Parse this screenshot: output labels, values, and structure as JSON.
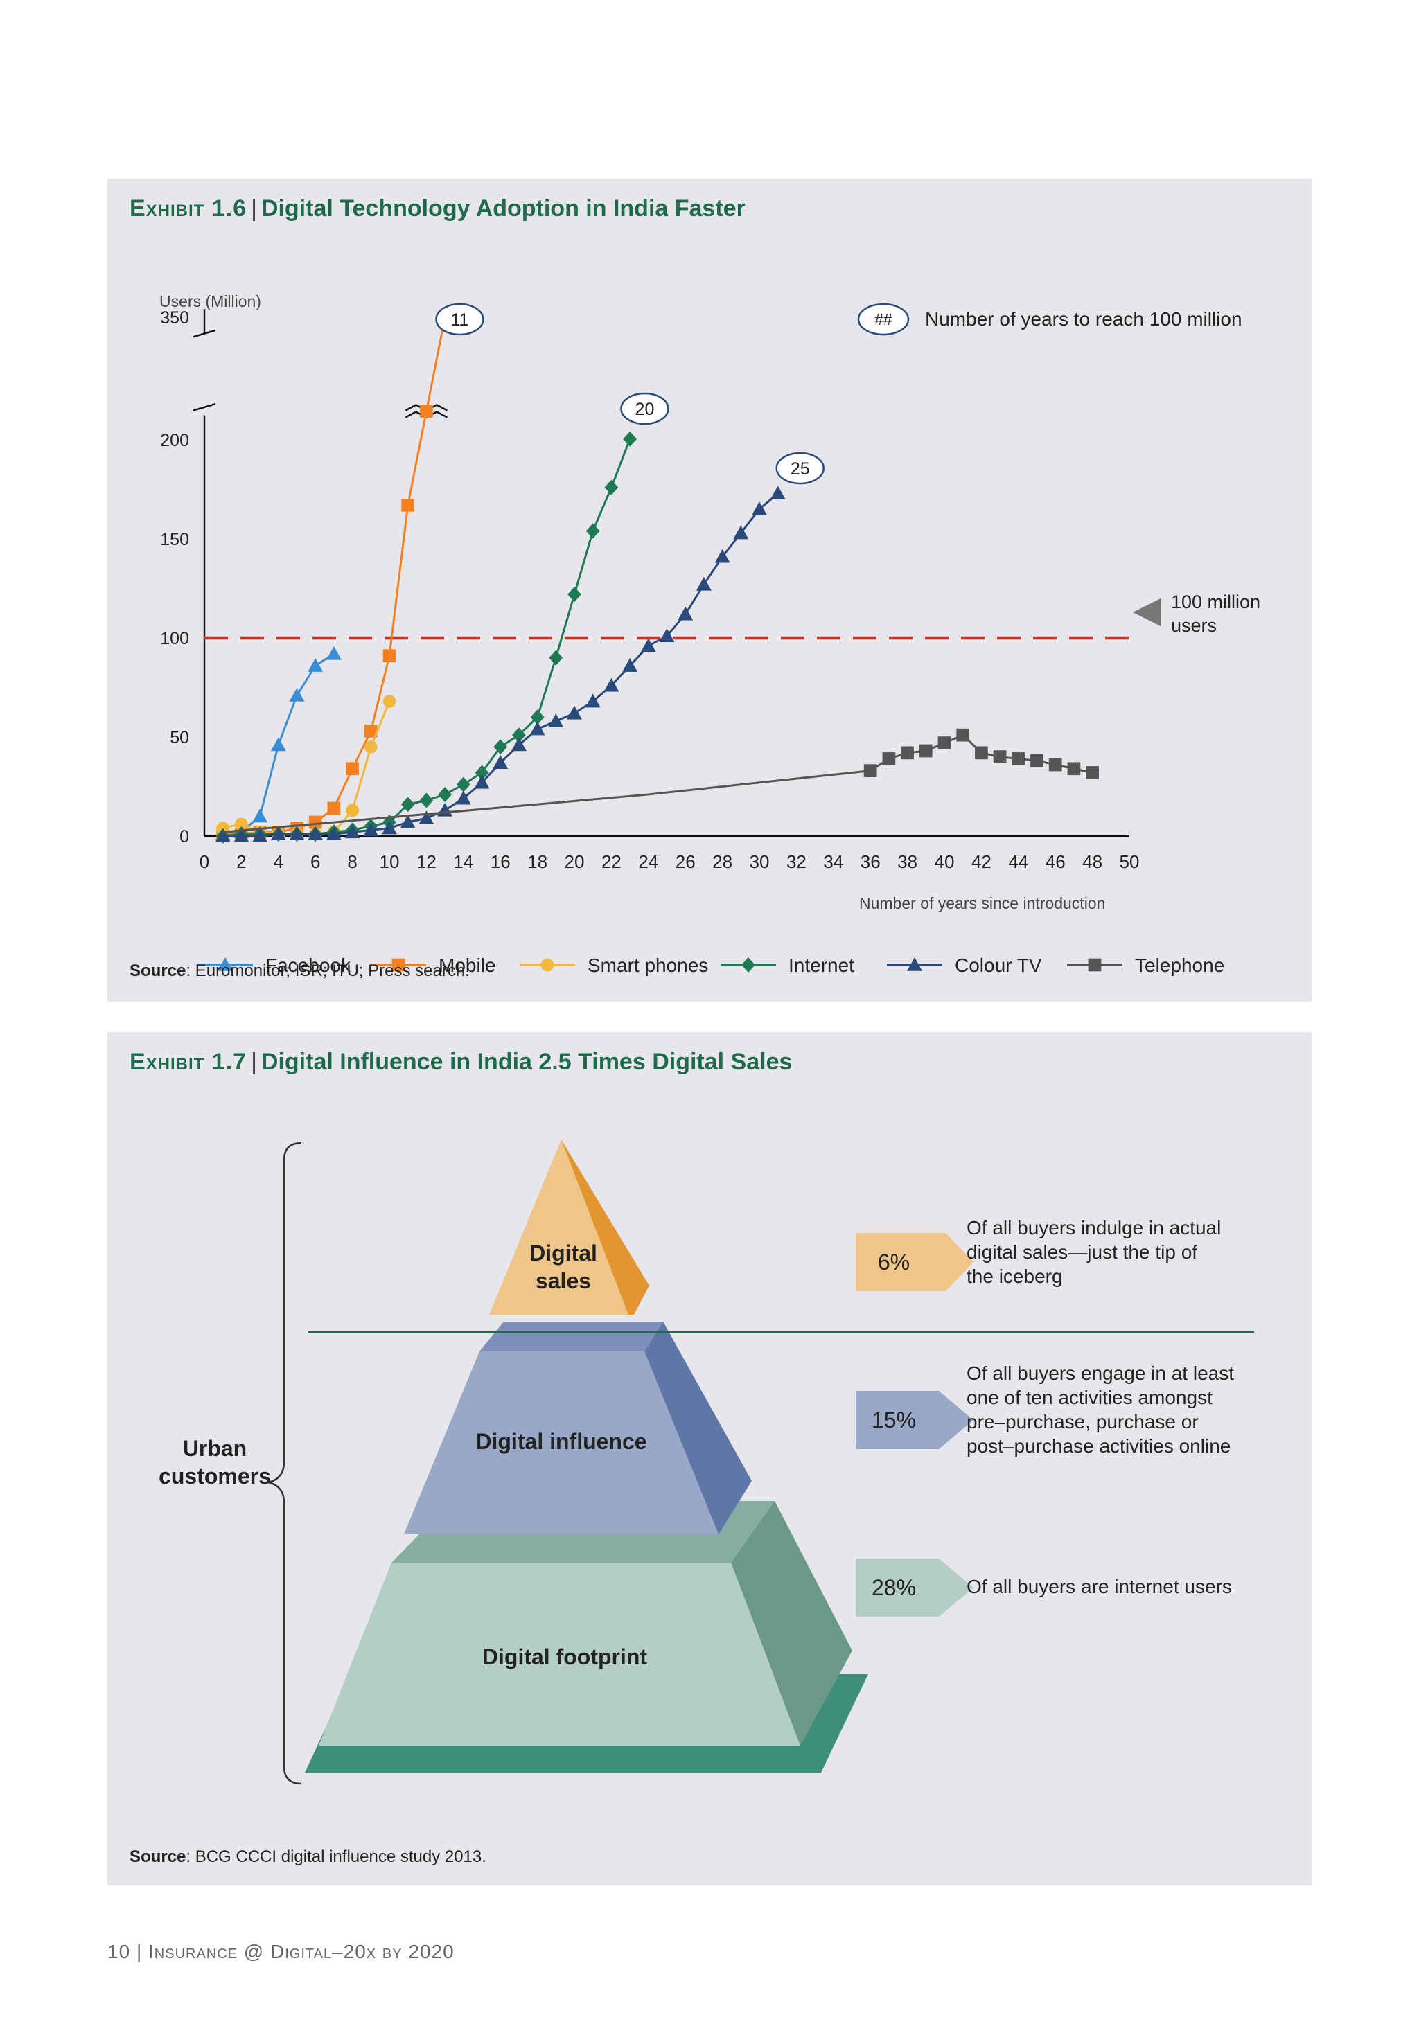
{
  "exhibit1": {
    "label": "Exhibit 1.6",
    "title": "Digital Technology Adoption in India Faster",
    "source_label": "Source",
    "source_text": ": Euromonitor; ISR; ITU; Press search.",
    "key_badge": "##",
    "key_text": "Number of years to reach 100 million",
    "threshold_label_line1": "100 million",
    "threshold_label_line2": "users",
    "badges": [
      "11",
      "20",
      "25"
    ]
  },
  "chart_data": {
    "type": "line",
    "ylabel": "Users (Million)",
    "xlabel": "Number of years since introduction",
    "x_ticks": [
      "0",
      "2",
      "4",
      "6",
      "8",
      "10",
      "12",
      "14",
      "16",
      "18",
      "20",
      "22",
      "24",
      "26",
      "28",
      "30",
      "32",
      "34",
      "36",
      "38",
      "40",
      "42",
      "44",
      "46",
      "48",
      "50"
    ],
    "y_ticks": [
      "0",
      "50",
      "100",
      "150",
      "200",
      "350"
    ],
    "xlim": [
      0,
      50
    ],
    "ylim": [
      0,
      200
    ],
    "y_axis_break": "350 shown above break at top of axis",
    "reference_line": {
      "y": 100,
      "label": "100 million users",
      "color": "#c0392b"
    },
    "legend_position": "bottom",
    "series": [
      {
        "name": "Facebook",
        "color": "#3a8fd4",
        "marker": "triangle",
        "x": [
          1,
          2,
          3,
          4,
          5,
          6,
          7
        ],
        "y": [
          1,
          2,
          10,
          46,
          71,
          86,
          92
        ]
      },
      {
        "name": "Mobile",
        "color": "#f4801f",
        "marker": "square",
        "x": [
          1,
          2,
          3,
          4,
          5,
          6,
          7,
          8,
          9,
          10,
          11,
          12,
          13
        ],
        "y": [
          1,
          1,
          2,
          2,
          4,
          7,
          14,
          34,
          53,
          91,
          167,
          235,
          350
        ]
      },
      {
        "name": "Smart phones",
        "color": "#f1b83c",
        "marker": "circle",
        "x": [
          1,
          2,
          3,
          4,
          5,
          6,
          7,
          8,
          9,
          10
        ],
        "y": [
          4,
          6,
          2,
          1,
          1,
          1,
          2,
          13,
          45,
          68
        ]
      },
      {
        "name": "Internet",
        "color": "#1e7a52",
        "marker": "diamond",
        "x": [
          1,
          2,
          3,
          4,
          5,
          6,
          7,
          8,
          9,
          10,
          11,
          12,
          13,
          14,
          15,
          16,
          17,
          18,
          19,
          20,
          21,
          22,
          23
        ],
        "y": [
          0,
          1,
          1,
          1,
          1,
          1,
          2,
          3,
          5,
          7,
          16,
          18,
          21,
          26,
          32,
          45,
          51,
          60,
          90,
          122,
          154,
          176,
          201
        ]
      },
      {
        "name": "Colour TV",
        "color": "#2a4a7b",
        "marker": "triangle",
        "x": [
          1,
          2,
          3,
          4,
          5,
          6,
          7,
          8,
          9,
          10,
          11,
          12,
          13,
          14,
          15,
          16,
          17,
          18,
          19,
          20,
          21,
          22,
          23,
          24,
          25,
          26,
          27,
          28,
          29,
          30,
          31
        ],
        "y": [
          0,
          0,
          0,
          1,
          1,
          1,
          1,
          2,
          3,
          4,
          7,
          9,
          13,
          19,
          27,
          37,
          46,
          54,
          58,
          62,
          68,
          76,
          86,
          96,
          101,
          112,
          127,
          141,
          153,
          165,
          173
        ]
      },
      {
        "name": "Telephone",
        "color": "#555555",
        "marker": "square",
        "x": [
          1,
          24,
          36,
          37,
          38,
          39,
          40,
          41,
          42,
          43,
          44,
          45,
          46,
          47,
          48
        ],
        "y": [
          2,
          21,
          33,
          39,
          42,
          43,
          47,
          51,
          42,
          40,
          39,
          38,
          36,
          34,
          32
        ]
      }
    ]
  },
  "exhibit2": {
    "label": "Exhibit 1.7",
    "title": "Digital Influence in India 2.5 Times Digital Sales",
    "source_label": "Source",
    "source_text": ": BCG CCCI digital influence study 2013.",
    "side_label_line1": "Urban",
    "side_label_line2": "customers",
    "tiers": [
      {
        "name_line1": "Digital",
        "name_line2": "sales",
        "percent": "6%",
        "desc": [
          "Of all buyers indulge in actual",
          "digital sales—just the tip of",
          "the iceberg"
        ],
        "color": "#f0c58a"
      },
      {
        "name_line1": "Digital influence",
        "name_line2": "",
        "percent": "15%",
        "desc": [
          "Of all buyers engage in at least",
          "one of ten activities amongst",
          "pre–purchase, purchase or",
          "post–purchase activities online"
        ],
        "color": "#99a8c6"
      },
      {
        "name_line1": "Digital footprint",
        "name_line2": "",
        "percent": "28%",
        "desc": [
          "Of all buyers are internet users"
        ],
        "color": "#b5cdc7"
      }
    ]
  },
  "footer": {
    "page": "10",
    "title": "Insurance @ Digital–20x by 2020"
  }
}
